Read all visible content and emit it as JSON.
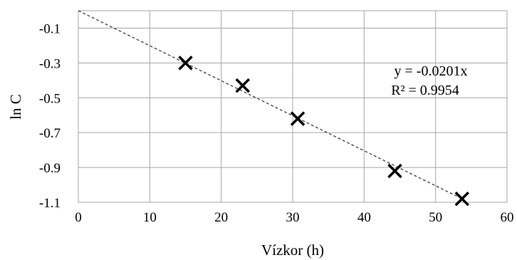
{
  "chart_data": {
    "type": "scatter",
    "title": "",
    "xlabel": "Vízkor (h)",
    "ylabel": "ln C",
    "xlim": [
      0,
      60
    ],
    "ylim": [
      -1.1,
      0.0
    ],
    "x_ticks": [
      0,
      10,
      20,
      30,
      40,
      50,
      60
    ],
    "x_tick_labels": [
      "0",
      "10",
      "20",
      "30",
      "40",
      "50",
      "60"
    ],
    "y_ticks": [
      -0.1,
      -0.3,
      -0.5,
      -0.7,
      -0.9,
      -1.1
    ],
    "y_tick_labels": [
      "-0.1",
      "-0.3",
      "-0.5",
      "-0.7",
      "-0.9",
      "-1.1"
    ],
    "grid": true,
    "legend": "none",
    "marker": "x",
    "series": [
      {
        "points": [
          {
            "x": 15.0,
            "y": -0.3
          },
          {
            "x": 23.0,
            "y": -0.43
          },
          {
            "x": 30.7,
            "y": -0.62
          },
          {
            "x": 44.3,
            "y": -0.92
          },
          {
            "x": 53.7,
            "y": -1.08
          }
        ]
      }
    ],
    "trendline": {
      "slope": -0.0201,
      "intercept": 0,
      "x_range": [
        0,
        53.7
      ],
      "style": "dashed",
      "equation_label": "y = -0.0201x",
      "r2_label": "R² = 0.9954"
    },
    "colors": {
      "marker": "#000000",
      "trendline": "#404040",
      "grid": "#a6a6a6"
    }
  }
}
